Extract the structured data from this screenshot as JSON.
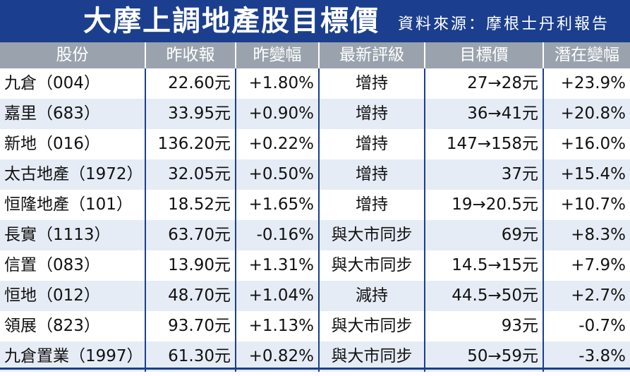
{
  "title": "大摩上調地產股目標價",
  "source": "資料來源：摩根士丹利報告",
  "headers": [
    "股份",
    "昨收報",
    "昨變幅",
    "最新評級",
    "目標價",
    "潛在變幅"
  ],
  "rows": [
    {
      "stock": "九倉（004）",
      "close": "22.60元",
      "change": "+1.80%",
      "rating": "增持",
      "target": "27→28元",
      "upside": "+23.9%"
    },
    {
      "stock": "嘉里（683）",
      "close": "33.95元",
      "change": "+0.90%",
      "rating": "增持",
      "target": "36→41元",
      "upside": "+20.8%"
    },
    {
      "stock": "新地（016）",
      "close": "136.20元",
      "change": "+0.22%",
      "rating": "增持",
      "target": "147→158元",
      "upside": "+16.0%"
    },
    {
      "stock": "太古地產（1972）",
      "close": "32.05元",
      "change": "+0.50%",
      "rating": "增持",
      "target": "37元",
      "upside": "+15.4%"
    },
    {
      "stock": "恒隆地產（101）",
      "close": "18.52元",
      "change": "+1.65%",
      "rating": "增持",
      "target": "19→20.5元",
      "upside": "+10.7%"
    },
    {
      "stock": "長實（1113）",
      "close": "63.70元",
      "change": "-0.16%",
      "rating": "與大市同步",
      "target": "69元",
      "upside": "+8.3%"
    },
    {
      "stock": "信置（083）",
      "close": "13.90元",
      "change": "+1.31%",
      "rating": "與大市同步",
      "target": "14.5→15元",
      "upside": "+7.9%"
    },
    {
      "stock": "恒地（012）",
      "close": "48.70元",
      "change": "+1.04%",
      "rating": "減持",
      "target": "44.5→50元",
      "upside": "+2.7%"
    },
    {
      "stock": "領展（823）",
      "close": "93.70元",
      "change": "+1.13%",
      "rating": "與大市同步",
      "target": "93元",
      "upside": "-0.7%"
    },
    {
      "stock": "九倉置業（1997）",
      "close": "61.30元",
      "change": "+0.82%",
      "rating": "與大市同步",
      "target": "50→59元",
      "upside": "-3.8%"
    }
  ],
  "colors": {
    "title_bg": "#1b3f8e",
    "header_bg": "#9aa3ad",
    "stripe": "#e6ecf5"
  }
}
